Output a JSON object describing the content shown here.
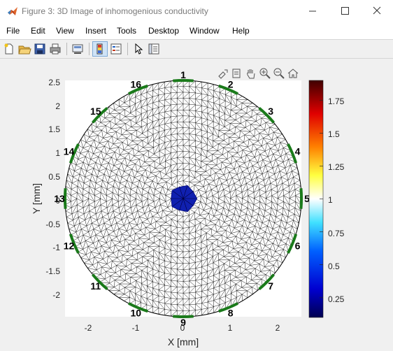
{
  "window": {
    "title": "Figure 3: 3D Image of inhomogenious conductivity"
  },
  "menu": [
    "File",
    "Edit",
    "View",
    "Insert",
    "Tools",
    "Desktop",
    "Window",
    "Help"
  ],
  "toolbar": {
    "icons": [
      "new-figure-icon",
      "open-file-icon",
      "save-icon",
      "print-icon",
      "link-plot-icon",
      "insert-colorbar-icon",
      "insert-legend-icon",
      "pointer-icon",
      "property-inspector-icon"
    ]
  },
  "axes_toolbar": {
    "icons": [
      "export-icon",
      "brush-icon",
      "pan-icon",
      "zoom-in-icon",
      "zoom-out-icon",
      "home-icon"
    ]
  },
  "colors": {
    "electrode": "#1a7a1a",
    "inclusion": "#1020b0",
    "mesh": "#000000"
  },
  "chart_data": {
    "type": "mesh",
    "xlabel": "X [mm]",
    "ylabel": "Y [mm]",
    "xlim": [
      -2.5,
      2.5
    ],
    "ylim": [
      -2.5,
      2.5
    ],
    "x_ticks": [
      "-2",
      "-1",
      "0",
      "1",
      "2"
    ],
    "y_ticks": [
      "2.5",
      "2",
      "1.5",
      "1",
      "0.5",
      "0",
      "-0.5",
      "-1",
      "-1.5",
      "-2"
    ],
    "domain_radius": 2.5,
    "inclusion": {
      "center": [
        0,
        0
      ],
      "radius": 0.3,
      "conductivity": 0.1
    },
    "background_conductivity": 1,
    "electrodes": [
      "1",
      "2",
      "3",
      "4",
      "5",
      "6",
      "7",
      "8",
      "9",
      "10",
      "11",
      "12",
      "13",
      "14",
      "15",
      "16"
    ],
    "colorbar": {
      "ticks": [
        "1.75",
        "1.5",
        "1.25",
        "1",
        "0.75",
        "0.5",
        "0.25"
      ],
      "range": [
        0.1,
        1.9
      ],
      "colormap": "jet-like (dark blue - cyan - white - yellow - red - dark red)"
    }
  }
}
